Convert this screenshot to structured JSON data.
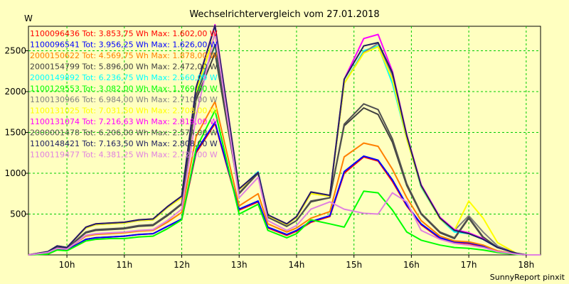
{
  "chart_data": {
    "type": "line",
    "title": "Wechselrichtervergleich vom 27.01.2018",
    "ylabel": "W",
    "footer": "SunnyReport pinxit",
    "xlim": [
      9.33,
      18.25
    ],
    "ylim": [
      0,
      2800
    ],
    "xticks": [
      {
        "value": 10,
        "label": "10h"
      },
      {
        "value": 11,
        "label": "11h"
      },
      {
        "value": 12,
        "label": "12h"
      },
      {
        "value": 13,
        "label": "13h"
      },
      {
        "value": 14,
        "label": "14h"
      },
      {
        "value": 15,
        "label": "15h"
      },
      {
        "value": 16,
        "label": "16h"
      },
      {
        "value": 17,
        "label": "17h"
      },
      {
        "value": 18,
        "label": "18h"
      }
    ],
    "yticks": [
      {
        "value": 500,
        "label": "500"
      },
      {
        "value": 1000,
        "label": "1000"
      },
      {
        "value": 1500,
        "label": "1500"
      },
      {
        "value": 2000,
        "label": "2000"
      },
      {
        "value": 2500,
        "label": "2500"
      }
    ],
    "grid": true,
    "legend_position": "top-left",
    "x": [
      9.33,
      9.67,
      9.83,
      10.0,
      10.33,
      10.5,
      10.75,
      11.0,
      11.25,
      11.5,
      11.75,
      12.0,
      12.25,
      12.58,
      13.0,
      13.33,
      13.5,
      13.83,
      14.0,
      14.25,
      14.58,
      14.83,
      15.17,
      15.42,
      15.67,
      15.92,
      16.17,
      16.5,
      16.75,
      17.0,
      17.25,
      17.5,
      17.83,
      18.0,
      18.25
    ],
    "series": [
      {
        "name": "1100096436 Tot: 3.853,75 Wh Max: 1.602,00 W",
        "color": "#ff0000",
        "values": [
          0,
          20,
          70,
          60,
          190,
          210,
          220,
          230,
          250,
          260,
          350,
          430,
          1250,
          1610,
          550,
          650,
          330,
          240,
          290,
          400,
          470,
          1000,
          1200,
          1150,
          900,
          600,
          370,
          200,
          150,
          140,
          100,
          40,
          10,
          0,
          0
        ]
      },
      {
        "name": "1100096541 Tot: 3.956,25 Wh Max: 1.626,00 W",
        "color": "#0000ff",
        "values": [
          0,
          20,
          70,
          60,
          190,
          210,
          220,
          230,
          250,
          260,
          350,
          440,
          1270,
          1626,
          560,
          660,
          340,
          250,
          300,
          410,
          480,
          1020,
          1210,
          1160,
          920,
          610,
          380,
          210,
          160,
          150,
          110,
          50,
          10,
          0,
          0
        ]
      },
      {
        "name": "2000150622 Tot: 4.569,75 Wh Max: 1.878,00 W",
        "color": "#ff8000",
        "values": [
          0,
          30,
          80,
          70,
          230,
          250,
          260,
          270,
          290,
          300,
          400,
          520,
          1450,
          1878,
          600,
          750,
          380,
          280,
          330,
          450,
          530,
          1200,
          1370,
          1330,
          1050,
          700,
          420,
          230,
          170,
          160,
          120,
          50,
          10,
          0,
          0
        ]
      },
      {
        "name": "2000154799 Tot: 5.896,00 Wh Max: 2.472,00 W",
        "color": "#404040",
        "values": [
          0,
          30,
          90,
          80,
          270,
          300,
          310,
          320,
          350,
          360,
          480,
          620,
          1900,
          2472,
          750,
          1000,
          460,
          350,
          420,
          650,
          700,
          1580,
          1800,
          1720,
          1380,
          850,
          500,
          270,
          200,
          450,
          210,
          90,
          20,
          0,
          0
        ]
      },
      {
        "name": "2000149892 Tot: 6.236,75 Wh Max: 2.560,00 W",
        "color": "#00ffff",
        "values": [
          0,
          40,
          110,
          90,
          330,
          370,
          380,
          390,
          420,
          430,
          580,
          700,
          2000,
          2560,
          800,
          1020,
          480,
          370,
          460,
          760,
          720,
          2100,
          2500,
          2560,
          2100,
          1420,
          830,
          440,
          280,
          260,
          190,
          90,
          20,
          0,
          0
        ]
      },
      {
        "name": "1100129553 Tot: 3.082,00 Wh Max: 1.769,00 W",
        "color": "#00ff00",
        "values": [
          0,
          10,
          60,
          50,
          170,
          190,
          200,
          200,
          220,
          230,
          320,
          430,
          1300,
          1769,
          500,
          620,
          300,
          210,
          260,
          430,
          380,
          340,
          780,
          760,
          550,
          280,
          180,
          120,
          90,
          80,
          60,
          30,
          5,
          0,
          0
        ]
      },
      {
        "name": "1100130966 Tot: 6.984,00 Wh Max: 2.710,00 W",
        "color": "#808080",
        "values": [
          0,
          40,
          110,
          90,
          330,
          370,
          380,
          390,
          420,
          430,
          580,
          700,
          2000,
          2710,
          800,
          1000,
          480,
          370,
          460,
          750,
          720,
          2100,
          2480,
          2590,
          2200,
          1450,
          850,
          450,
          300,
          480,
          280,
          110,
          20,
          0,
          0
        ]
      },
      {
        "name": "1100131025 Tot: 7.031,50 Wh Max: 2.708,00 W",
        "color": "#ffff00",
        "values": [
          0,
          40,
          110,
          90,
          330,
          370,
          380,
          390,
          420,
          430,
          580,
          700,
          2000,
          2708,
          800,
          1000,
          480,
          370,
          460,
          750,
          720,
          2100,
          2470,
          2550,
          2150,
          1420,
          840,
          440,
          300,
          660,
          450,
          150,
          20,
          0,
          0
        ]
      },
      {
        "name": "1100131074 Tot: 7.216,63 Wh Max: 2.819,00 W",
        "color": "#ff00ff",
        "values": [
          0,
          40,
          110,
          90,
          340,
          380,
          390,
          400,
          430,
          440,
          590,
          720,
          2050,
          2819,
          810,
          1010,
          490,
          380,
          470,
          770,
          730,
          2150,
          2650,
          2700,
          2250,
          1470,
          860,
          460,
          310,
          270,
          200,
          90,
          20,
          0,
          0
        ]
      },
      {
        "name": "2000001478 Tot: 6.206,00 Wh Max: 2.574,00 W",
        "color": "#505050",
        "values": [
          0,
          30,
          90,
          80,
          280,
          310,
          320,
          330,
          360,
          370,
          490,
          630,
          1950,
          2574,
          760,
          1000,
          460,
          350,
          420,
          660,
          700,
          1600,
          1850,
          1780,
          1420,
          870,
          510,
          280,
          210,
          460,
          220,
          90,
          20,
          0,
          0
        ]
      },
      {
        "name": "1100148421 Tot: 7.163,50 Wh Max: 2.808,00 W",
        "color": "#202060",
        "values": [
          0,
          40,
          110,
          90,
          340,
          380,
          390,
          400,
          430,
          440,
          590,
          720,
          2050,
          2808,
          810,
          1010,
          490,
          380,
          470,
          770,
          730,
          2150,
          2560,
          2600,
          2230,
          1460,
          850,
          450,
          300,
          260,
          190,
          90,
          20,
          0,
          0
        ]
      },
      {
        "name": "1100119477 Tot: 4.381,25 Wh Max: 2.727,00 W",
        "color": "#e080e0",
        "values": [
          0,
          30,
          80,
          70,
          240,
          260,
          270,
          280,
          300,
          310,
          420,
          560,
          1700,
          2727,
          700,
          950,
          420,
          300,
          360,
          560,
          650,
          560,
          510,
          500,
          760,
          650,
          300,
          190,
          140,
          120,
          90,
          40,
          10,
          0,
          0
        ]
      }
    ]
  }
}
